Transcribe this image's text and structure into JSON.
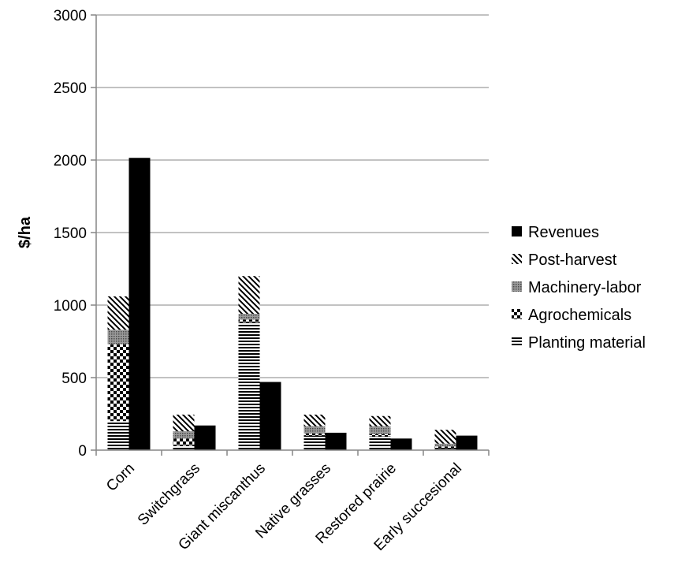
{
  "chart_data": {
    "type": "bar",
    "stacked_costs_with_revenue": true,
    "ylabel": "$/ha",
    "ylim": [
      0,
      3000
    ],
    "yticks": [
      0,
      500,
      1000,
      1500,
      2000,
      2500,
      3000
    ],
    "grid": true,
    "legend_position": "right",
    "categories": [
      "Corn",
      "Switchgrass",
      "Giant miscanthus",
      "Native grasses",
      "Restored prairie",
      "Early succesional"
    ],
    "cost_series": [
      {
        "name": "Planting material",
        "pattern": "horizontal-lines",
        "values": [
          200,
          30,
          880,
          100,
          95,
          15
        ]
      },
      {
        "name": "Agrochemicals",
        "pattern": "checker",
        "values": [
          530,
          50,
          20,
          15,
          15,
          10
        ]
      },
      {
        "name": "Machinery-labor",
        "pattern": "dots",
        "values": [
          100,
          50,
          40,
          50,
          55,
          20
        ]
      },
      {
        "name": "Post-harvest",
        "pattern": "diagonal-lines",
        "values": [
          230,
          115,
          260,
          80,
          70,
          95
        ]
      }
    ],
    "revenue_series": {
      "name": "Revenues",
      "color": "#000000",
      "values": [
        2015,
        170,
        470,
        120,
        80,
        100
      ]
    },
    "legend": [
      "Revenues",
      "Post-harvest",
      "Machinery-labor",
      "Agrochemicals",
      "Planting material"
    ]
  }
}
